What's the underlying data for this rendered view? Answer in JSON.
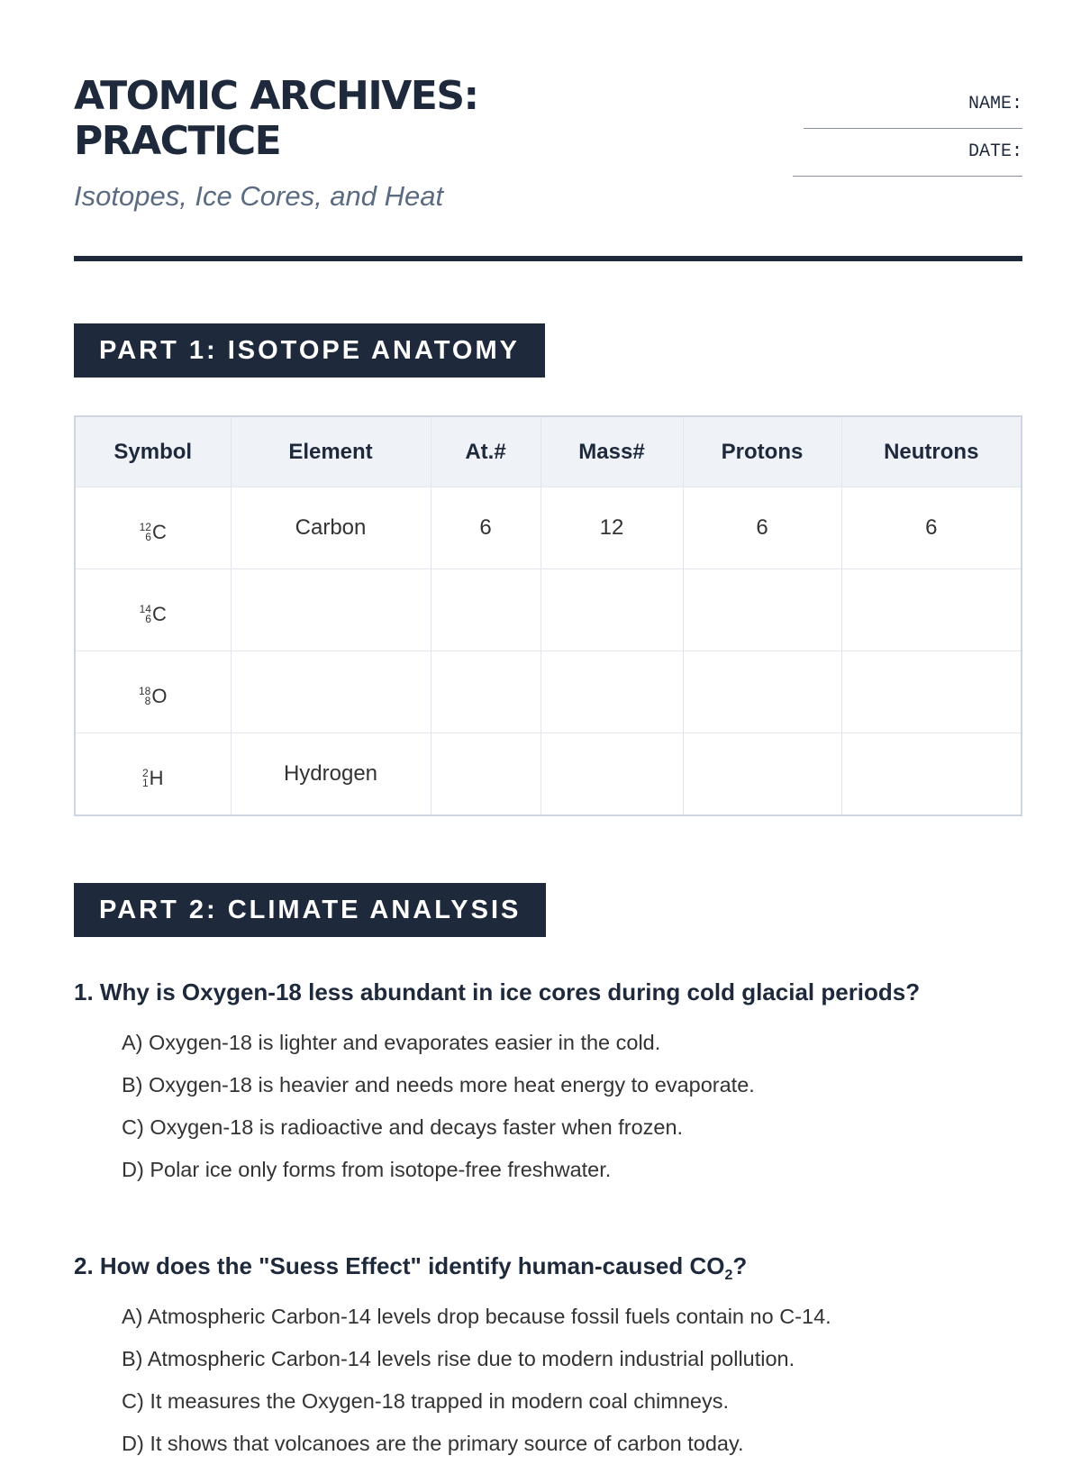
{
  "header": {
    "title_line1": "ATOMIC ARCHIVES:",
    "title_line2": "PRACTICE",
    "subtitle": "Isotopes, Ice Cores, and Heat",
    "name_label": "NAME:",
    "date_label": "DATE:"
  },
  "part1": {
    "heading": "PART 1: ISOTOPE ANATOMY",
    "columns": [
      "Symbol",
      "Element",
      "At.#",
      "Mass#",
      "Protons",
      "Neutrons"
    ],
    "rows": [
      {
        "mass": "12",
        "atomic": "6",
        "symbol": "C",
        "element": "Carbon",
        "at": "6",
        "massno": "12",
        "protons": "6",
        "neutrons": "6"
      },
      {
        "mass": "14",
        "atomic": "6",
        "symbol": "C",
        "element": "",
        "at": "",
        "massno": "",
        "protons": "",
        "neutrons": ""
      },
      {
        "mass": "18",
        "atomic": "8",
        "symbol": "O",
        "element": "",
        "at": "",
        "massno": "",
        "protons": "",
        "neutrons": ""
      },
      {
        "mass": "2",
        "atomic": "1",
        "symbol": "H",
        "element": "Hydrogen",
        "at": "",
        "massno": "",
        "protons": "",
        "neutrons": ""
      }
    ]
  },
  "part2": {
    "heading": "PART 2: CLIMATE ANALYSIS",
    "questions": [
      {
        "text": "1. Why is Oxygen-18 less abundant in ice cores during cold glacial periods?",
        "options": [
          "A) Oxygen-18 is lighter and evaporates easier in the cold.",
          "B) Oxygen-18 is heavier and needs more heat energy to evaporate.",
          "C) Oxygen-18 is radioactive and decays faster when frozen.",
          "D) Polar ice only forms from isotope-free freshwater."
        ]
      },
      {
        "text": "2. How does the \"Suess Effect\" identify human-caused CO",
        "text_sub": "2",
        "text_end": "?",
        "options": [
          "A) Atmospheric Carbon-14 levels drop because fossil fuels contain no C-14.",
          "B) Atmospheric Carbon-14 levels rise due to modern industrial pollution.",
          "C) It measures the Oxygen-18 trapped in modern coal chimneys.",
          "D) It shows that volcanoes are the primary source of carbon today."
        ]
      }
    ]
  }
}
